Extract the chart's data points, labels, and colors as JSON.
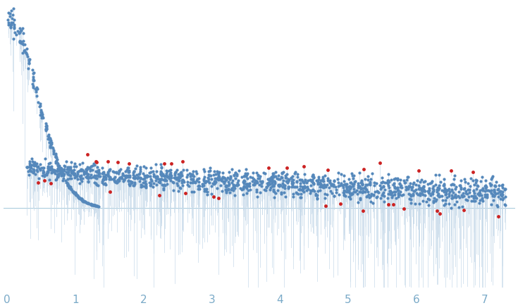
{
  "xlim": [
    -0.05,
    7.45
  ],
  "ylim": [
    -0.42,
    1.08
  ],
  "xticks": [
    0,
    1,
    2,
    3,
    4,
    5,
    6,
    7
  ],
  "tick_color": "#7aaac8",
  "axis_color": "#aaccdd",
  "bg_color": "#ffffff",
  "dot_color_main": "#5588bb",
  "dot_color_outlier": "#cc2222",
  "error_bar_color": "#c8daea",
  "dot_size_main": 3.0,
  "dot_size_outlier": 3.5,
  "n_dense": 220,
  "n_spread": 1400,
  "seed": 7
}
